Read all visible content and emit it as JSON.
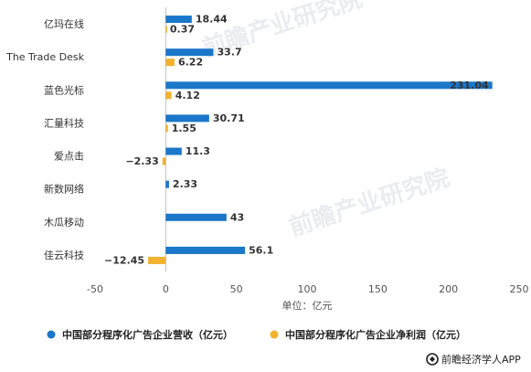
{
  "chart_data": {
    "type": "bar",
    "orientation": "horizontal",
    "categories": [
      "亿玛在线",
      "The Trade Desk",
      "蓝色光标",
      "汇量科技",
      "爱点击",
      "新数网络",
      "木瓜移动",
      "佳云科技"
    ],
    "series": [
      {
        "name": "中国部分程序化广告企业营收（亿元）",
        "color": "#1a77c9",
        "values": [
          18.44,
          33.7,
          231.04,
          30.71,
          11.3,
          2.33,
          43,
          56.1
        ],
        "labels": [
          "18.44",
          "33.7",
          "231.04",
          "30.71",
          "11.3",
          "2.33",
          "43",
          "56.1"
        ]
      },
      {
        "name": "中国部分程序化广告企业净利润（亿元）",
        "color": "#f2b230",
        "values": [
          0.37,
          6.22,
          4.12,
          1.55,
          -2.33,
          null,
          null,
          -12.45
        ],
        "labels": [
          "0.37",
          "6.22",
          "4.12",
          "1.55",
          "−2.33",
          null,
          null,
          "−12.45"
        ]
      }
    ],
    "xlim": [
      -50,
      250
    ],
    "xticks": [
      -50,
      0,
      50,
      100,
      150,
      200,
      250
    ],
    "xlabel": "单位：亿元",
    "legend": "bottom",
    "grid": false
  },
  "watermark": "前瞻产业研究院",
  "credit": "前瞻经济学人APP",
  "credit_icon": "qianzhan-logo-icon"
}
